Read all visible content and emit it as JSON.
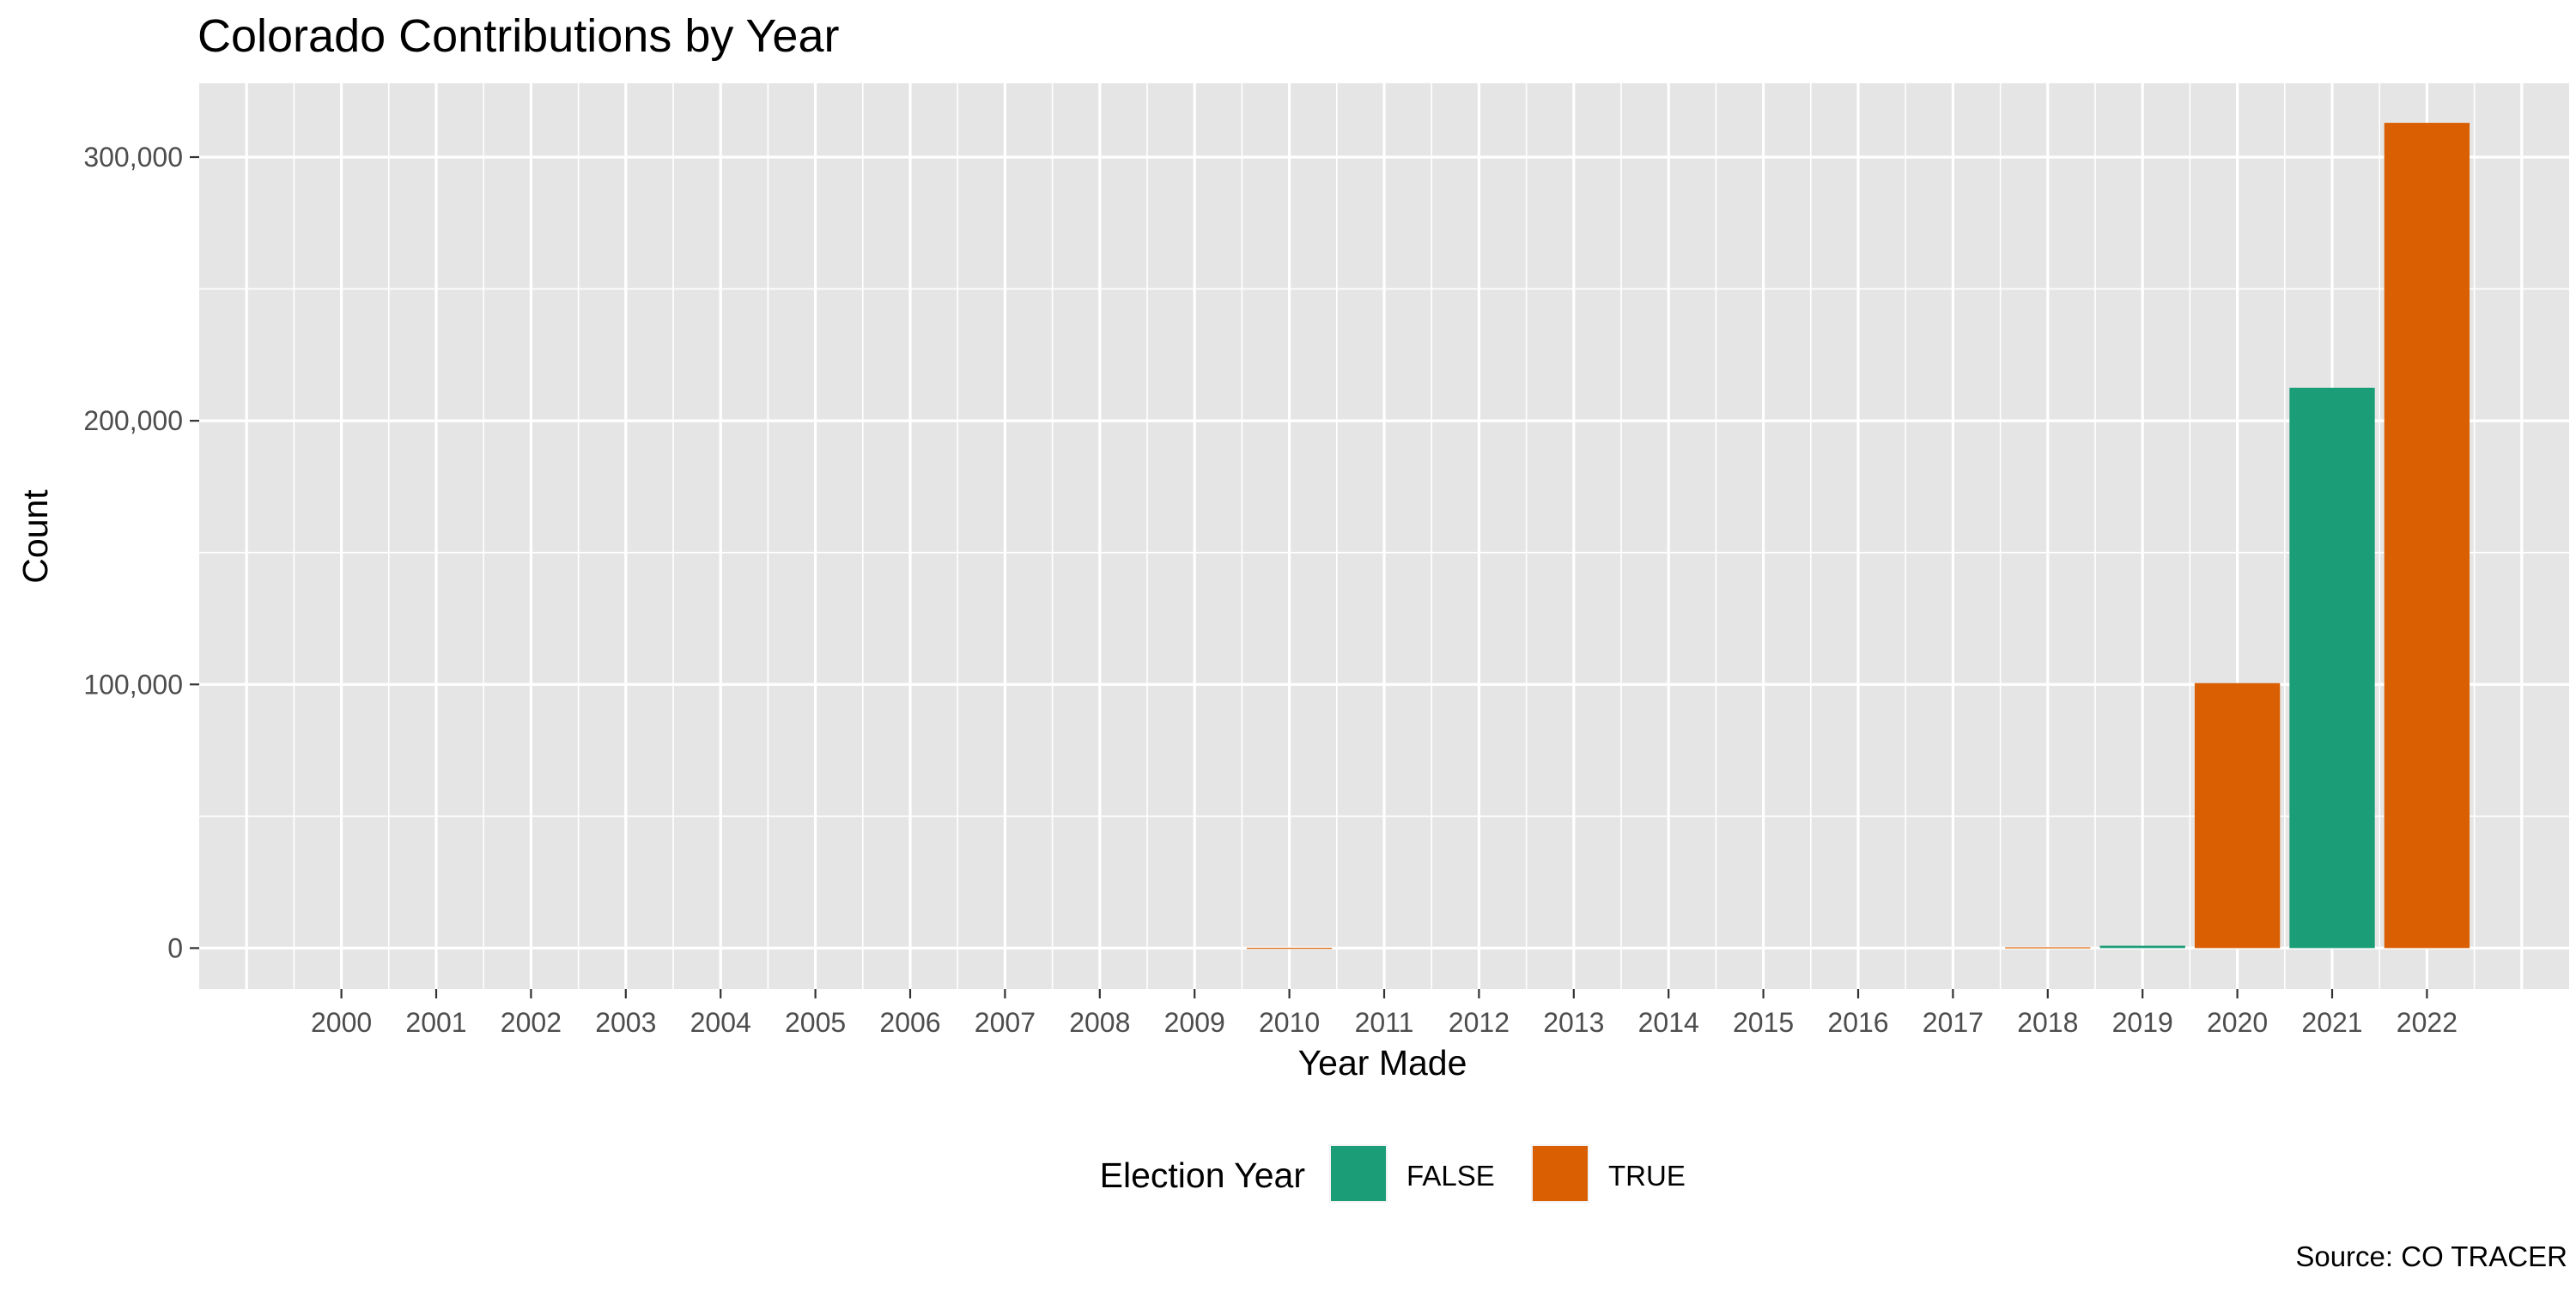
{
  "chart_data": {
    "type": "bar",
    "title": "Colorado Contributions by Year",
    "xlabel": "Year Made",
    "ylabel": "Count",
    "caption": "Source: CO TRACER",
    "legend": {
      "title": "Election Year",
      "position": "bottom",
      "entries": [
        {
          "label": "FALSE",
          "color": "#1b9e77"
        },
        {
          "label": "TRUE",
          "color": "#d95f02"
        }
      ]
    },
    "categories": [
      "2000",
      "2001",
      "2002",
      "2003",
      "2004",
      "2005",
      "2006",
      "2007",
      "2008",
      "2009",
      "2010",
      "2011",
      "2012",
      "2013",
      "2014",
      "2015",
      "2016",
      "2017",
      "2018",
      "2019",
      "2020",
      "2021",
      "2022"
    ],
    "values": [
      0,
      0,
      0,
      0,
      0,
      0,
      0,
      0,
      0,
      0,
      120,
      0,
      0,
      0,
      0,
      0,
      0,
      0,
      300,
      900,
      100500,
      212500,
      313000
    ],
    "election_year": [
      true,
      false,
      true,
      false,
      true,
      false,
      true,
      false,
      true,
      false,
      true,
      false,
      true,
      false,
      true,
      false,
      true,
      false,
      true,
      false,
      true,
      false,
      true
    ],
    "ylim": [
      -15500,
      328000
    ],
    "yticks": [
      0,
      100000,
      200000,
      300000
    ],
    "ytick_labels": [
      "0",
      "100,000",
      "200,000",
      "300,000"
    ],
    "xlim": [
      1998.5,
      2023.5
    ],
    "grid": true,
    "panel_background": "#e5e5e5",
    "grid_color": "#ffffff"
  }
}
